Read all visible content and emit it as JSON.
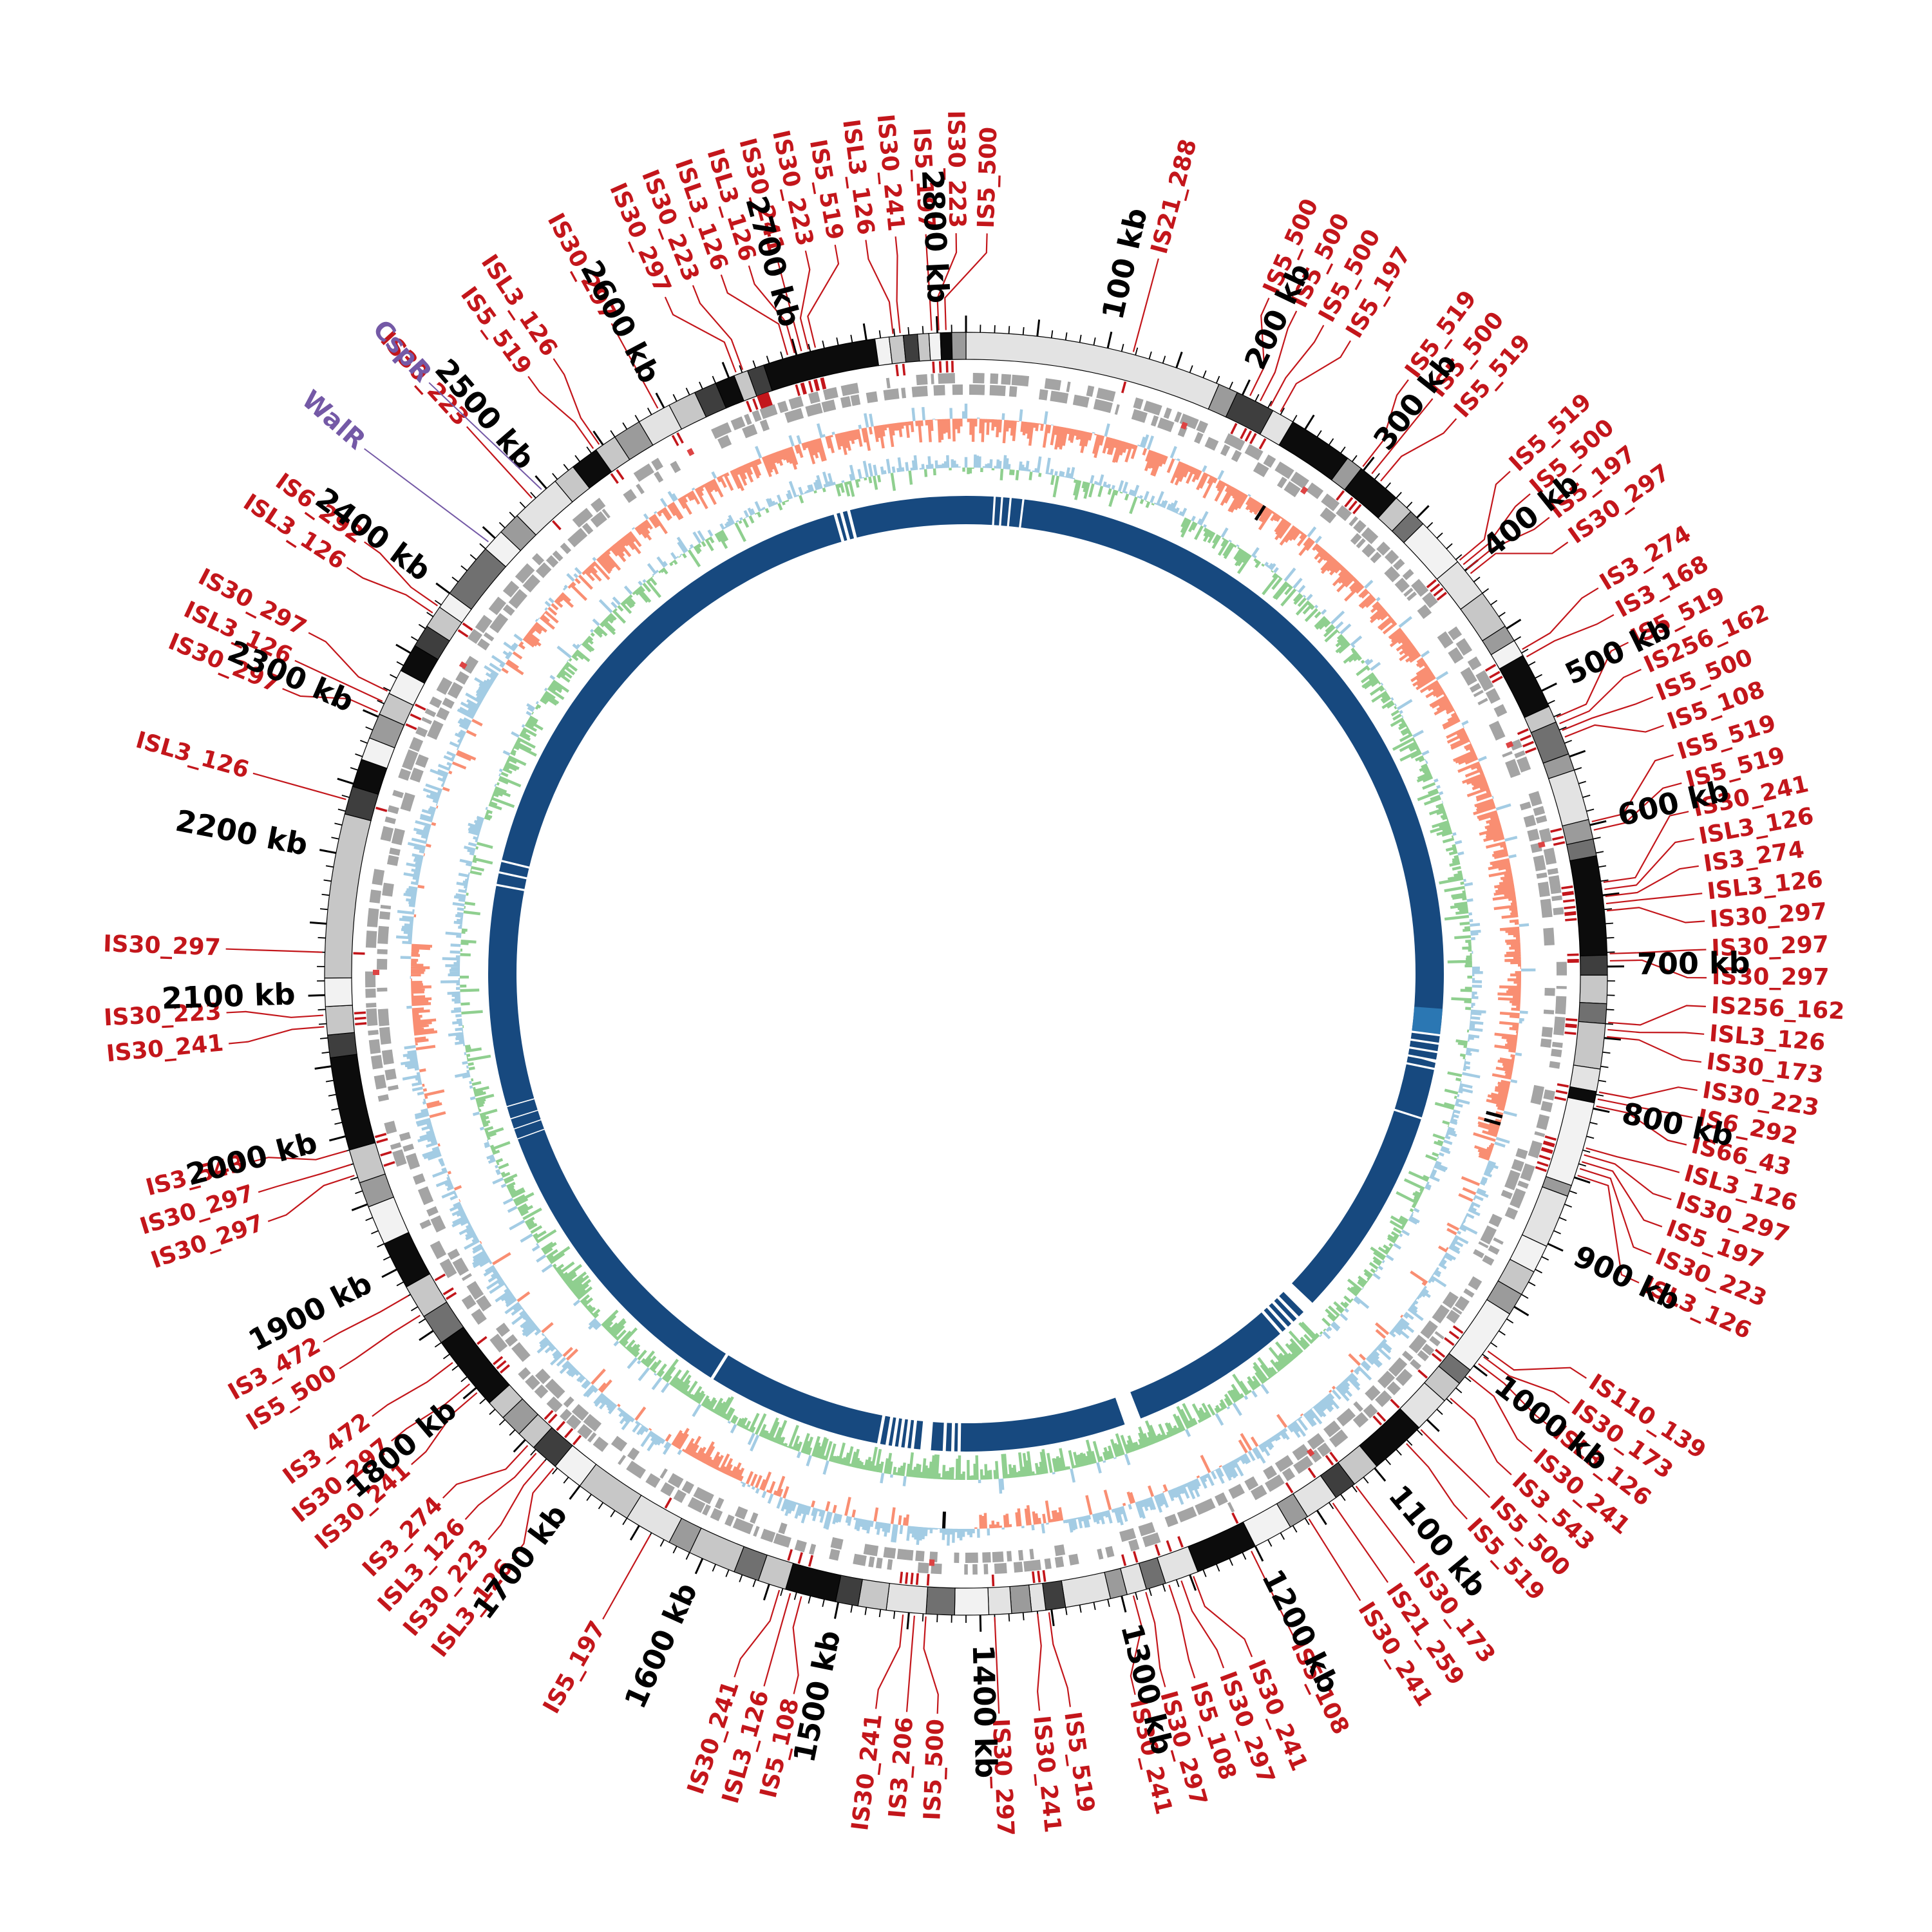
{
  "figure": {
    "background": "#ffffff",
    "colors": {
      "is_label_red": "#C3161B",
      "gene_label_purple": "#7459A6",
      "scale_black": "#000000",
      "skew_orange": "#F98E72",
      "skew_blue": "#A3CCE4",
      "inner_green": "#8FCF8F",
      "coverage_navy": "#17497F",
      "coverage_highlight_blue": "#2B77B3",
      "cds_gray": "#A4A4A4",
      "gc_shades": {
        "W": "#F2F2F2",
        "L": "#E3E3E3",
        "C": "#C7C7C7",
        "M": "#9B9B9B",
        "D": "#707070",
        "D2": "#3E3E3E",
        "K": "#0C0C0C"
      }
    }
  },
  "chart_data": {
    "type": "circular-genome-map",
    "genome_length_kb": 2820,
    "scale": {
      "unit": "kb",
      "tick_minor_kb": 10,
      "tick_major_kb": 50,
      "label_interval_kb": 100,
      "labels": [
        "100 kb",
        "200 kb",
        "300 kb",
        "400 kb",
        "500 kb",
        "600 kb",
        "700 kb",
        "800 kb",
        "900 kb",
        "1000 kb",
        "1100 kb",
        "1200 kb",
        "1300 kb",
        "1400 kb",
        "1500 kb",
        "1600 kb",
        "1700 kb",
        "1800 kb",
        "1900 kb",
        "2000 kb",
        "2100 kb",
        "2200 kb",
        "2300 kb",
        "2400 kb",
        "2500 kb",
        "2600 kb",
        "2700 kb",
        "2800 kb"
      ]
    },
    "gene_labels": [
      {
        "name": "CspR",
        "kb": 2497
      },
      {
        "name": "WalR",
        "kb": 2445
      }
    ],
    "is_elements": [
      [
        "IS21_288",
        118
      ],
      [
        "IS5_500",
        205
      ],
      [
        "IS5_500",
        213
      ],
      [
        "IS5_500",
        221
      ],
      [
        "IS5_197",
        229
      ],
      [
        "IS5_519",
        298
      ],
      [
        "IS5_500",
        306
      ],
      [
        "IS5_519",
        314
      ],
      [
        "IS5_519",
        392
      ],
      [
        "IS5_500",
        396
      ],
      [
        "IS5_197",
        400
      ],
      [
        "IS30_297",
        404
      ],
      [
        "IS3_274",
        468
      ],
      [
        "IS3_168",
        474
      ],
      [
        "IS5_519",
        521
      ],
      [
        "IS256_162",
        526
      ],
      [
        "IS5_500",
        531
      ],
      [
        "IS5_108",
        536
      ],
      [
        "IS5_519",
        598
      ],
      [
        "IS5_519",
        604
      ],
      [
        "IS30_241",
        641
      ],
      [
        "ISL3_126",
        646
      ],
      [
        "IS3_274",
        651
      ],
      [
        "ISL3_126",
        656
      ],
      [
        "IS30_297",
        661
      ],
      [
        "IS30_297",
        691
      ],
      [
        "IS30_297",
        696
      ],
      [
        "IS256_162",
        739
      ],
      [
        "ISL3_126",
        744
      ],
      [
        "IS30_173",
        749
      ],
      [
        "IS30_223",
        788
      ],
      [
        "IS6_292",
        793
      ],
      [
        "IS66_43",
        798
      ],
      [
        "ISL3_126",
        828
      ],
      [
        "IS30_297",
        833
      ],
      [
        "IS5_197",
        838
      ],
      [
        "IS30_223",
        843
      ],
      [
        "ISL3_126",
        848
      ],
      [
        "IS110_139",
        986
      ],
      [
        "IS30_173",
        991
      ],
      [
        "ISL3_126",
        997
      ],
      [
        "IS30_241",
        1008
      ],
      [
        "IS3_543",
        1028
      ],
      [
        "IS5_500",
        1058
      ],
      [
        "IS5_519",
        1072
      ],
      [
        "IS30_173",
        1118
      ],
      [
        "IS21_259",
        1138
      ],
      [
        "IS30_241",
        1158
      ],
      [
        "IS5_108",
        1204
      ],
      [
        "IS30_241",
        1248
      ],
      [
        "IS30_297",
        1257
      ],
      [
        "IS5_108",
        1266
      ],
      [
        "IS30_297",
        1283
      ],
      [
        "IS30_241",
        1292
      ],
      [
        "IS5_519",
        1352
      ],
      [
        "IS30_241",
        1360
      ],
      [
        "IS30_297",
        1390
      ],
      [
        "IS5_500",
        1438
      ],
      [
        "IS3_206",
        1446
      ],
      [
        "IS30_241",
        1454
      ],
      [
        "IS5_108",
        1526
      ],
      [
        "ISL3_126",
        1534
      ],
      [
        "IS30_241",
        1542
      ],
      [
        "IS5_197",
        1640
      ],
      [
        "ISL3_126",
        1722
      ],
      [
        "IS30_223",
        1730
      ],
      [
        "ISL3_126",
        1738
      ],
      [
        "IS3_274",
        1746
      ],
      [
        "IS30_241",
        1797
      ],
      [
        "IS30_297",
        1805
      ],
      [
        "IS3_472",
        1824
      ],
      [
        "IS5_500",
        1864
      ],
      [
        "IS3_472",
        1880
      ],
      [
        "IS30_297",
        1972
      ],
      [
        "IS30_297",
        1980
      ],
      [
        "IS3_543",
        1990
      ],
      [
        "IS30_241",
        2078
      ],
      [
        "IS30_223",
        2086
      ],
      [
        "IS30_297",
        2130
      ],
      [
        "ISL3_126",
        2238
      ],
      [
        "IS30_297",
        2303
      ],
      [
        "ISL3_126",
        2311
      ],
      [
        "IS30_297",
        2319
      ],
      [
        "ISL3_126",
        2382
      ],
      [
        "IS6_292",
        2388
      ],
      [
        "IS30_223",
        2488
      ],
      [
        "IS5_519",
        2543
      ],
      [
        "ISL3_126",
        2548
      ],
      [
        "IS30_297",
        2596
      ],
      [
        "IS30_297",
        2656
      ],
      [
        "IS30_223",
        2661
      ],
      [
        "ISL3_126",
        2694
      ],
      [
        "ISL3_126",
        2699
      ],
      [
        "IS30_241",
        2704
      ],
      [
        "IS30_223",
        2709
      ],
      [
        "IS5_519",
        2714
      ],
      [
        "ISL3_126",
        2769
      ],
      [
        "IS30_241",
        2774
      ],
      [
        "IS5_197",
        2796
      ],
      [
        "IS30_223",
        2801
      ],
      [
        "IS5_500",
        2806
      ]
    ],
    "wide_red_marks": [
      [
        2664,
        9
      ]
    ],
    "gene_track_red_marks": [
      168,
      272,
      524,
      604,
      1128,
      1434,
      2114,
      2360,
      2600
    ],
    "gc_segments": [
      [
        0,
        182,
        "L"
      ],
      [
        182,
        196,
        "M"
      ],
      [
        196,
        224,
        "D2"
      ],
      [
        224,
        240,
        "L"
      ],
      [
        240,
        286,
        "K"
      ],
      [
        286,
        298,
        "M"
      ],
      [
        298,
        330,
        "K"
      ],
      [
        330,
        344,
        "C"
      ],
      [
        344,
        356,
        "D"
      ],
      [
        356,
        392,
        "W"
      ],
      [
        392,
        420,
        "L"
      ],
      [
        420,
        448,
        "C"
      ],
      [
        448,
        460,
        "M"
      ],
      [
        460,
        472,
        "W"
      ],
      [
        472,
        512,
        "K"
      ],
      [
        512,
        524,
        "C"
      ],
      [
        524,
        548,
        "D"
      ],
      [
        548,
        560,
        "M"
      ],
      [
        560,
        596,
        "L"
      ],
      [
        596,
        610,
        "M"
      ],
      [
        610,
        622,
        "D"
      ],
      [
        622,
        692,
        "K"
      ],
      [
        692,
        706,
        "D2"
      ],
      [
        706,
        726,
        "C"
      ],
      [
        726,
        740,
        "D"
      ],
      [
        740,
        772,
        "C"
      ],
      [
        772,
        788,
        "L"
      ],
      [
        788,
        796,
        "K"
      ],
      [
        796,
        856,
        "W"
      ],
      [
        856,
        864,
        "M"
      ],
      [
        864,
        902,
        "L"
      ],
      [
        902,
        922,
        "W"
      ],
      [
        922,
        940,
        "C"
      ],
      [
        940,
        956,
        "M"
      ],
      [
        956,
        1004,
        "W"
      ],
      [
        1004,
        1016,
        "D"
      ],
      [
        1016,
        1032,
        "C"
      ],
      [
        1032,
        1058,
        "L"
      ],
      [
        1058,
        1098,
        "K"
      ],
      [
        1098,
        1118,
        "C"
      ],
      [
        1118,
        1134,
        "D2"
      ],
      [
        1134,
        1158,
        "L"
      ],
      [
        1158,
        1172,
        "M"
      ],
      [
        1172,
        1200,
        "W"
      ],
      [
        1200,
        1244,
        "K"
      ],
      [
        1244,
        1268,
        "L"
      ],
      [
        1268,
        1282,
        "D"
      ],
      [
        1282,
        1296,
        "L"
      ],
      [
        1296,
        1308,
        "M"
      ],
      [
        1308,
        1340,
        "L"
      ],
      [
        1340,
        1354,
        "D2"
      ],
      [
        1354,
        1364,
        "L"
      ],
      [
        1364,
        1378,
        "M"
      ],
      [
        1378,
        1394,
        "L"
      ],
      [
        1394,
        1418,
        "W"
      ],
      [
        1418,
        1438,
        "D"
      ],
      [
        1438,
        1466,
        "L"
      ],
      [
        1466,
        1486,
        "C"
      ],
      [
        1486,
        1502,
        "D2"
      ],
      [
        1502,
        1538,
        "K"
      ],
      [
        1538,
        1558,
        "C"
      ],
      [
        1558,
        1576,
        "D"
      ],
      [
        1576,
        1610,
        "C"
      ],
      [
        1610,
        1626,
        "M"
      ],
      [
        1626,
        1660,
        "L"
      ],
      [
        1660,
        1700,
        "C"
      ],
      [
        1700,
        1722,
        "W"
      ],
      [
        1722,
        1742,
        "D2"
      ],
      [
        1742,
        1756,
        "C"
      ],
      [
        1756,
        1772,
        "M"
      ],
      [
        1772,
        1786,
        "C"
      ],
      [
        1786,
        1840,
        "K"
      ],
      [
        1840,
        1862,
        "D"
      ],
      [
        1862,
        1886,
        "C"
      ],
      [
        1886,
        1920,
        "K"
      ],
      [
        1920,
        1948,
        "W"
      ],
      [
        1948,
        1966,
        "M"
      ],
      [
        1966,
        1990,
        "C"
      ],
      [
        1990,
        2056,
        "K"
      ],
      [
        2056,
        2072,
        "D2"
      ],
      [
        2072,
        2092,
        "C"
      ],
      [
        2092,
        2112,
        "W"
      ],
      [
        2112,
        2228,
        "C"
      ],
      [
        2228,
        2248,
        "D2"
      ],
      [
        2248,
        2268,
        "K"
      ],
      [
        2268,
        2284,
        "W"
      ],
      [
        2284,
        2302,
        "M"
      ],
      [
        2302,
        2318,
        "C"
      ],
      [
        2318,
        2336,
        "W"
      ],
      [
        2336,
        2356,
        "K"
      ],
      [
        2356,
        2372,
        "D2"
      ],
      [
        2372,
        2388,
        "C"
      ],
      [
        2388,
        2400,
        "W"
      ],
      [
        2400,
        2440,
        "D"
      ],
      [
        2440,
        2456,
        "W"
      ],
      [
        2456,
        2472,
        "M"
      ],
      [
        2472,
        2508,
        "L"
      ],
      [
        2508,
        2524,
        "C"
      ],
      [
        2524,
        2544,
        "K"
      ],
      [
        2544,
        2560,
        "C"
      ],
      [
        2560,
        2580,
        "M"
      ],
      [
        2580,
        2604,
        "L"
      ],
      [
        2604,
        2624,
        "C"
      ],
      [
        2624,
        2640,
        "D2"
      ],
      [
        2640,
        2654,
        "K"
      ],
      [
        2654,
        2664,
        "C"
      ],
      [
        2664,
        2676,
        "D2"
      ],
      [
        2676,
        2756,
        "K"
      ],
      [
        2756,
        2766,
        "W"
      ],
      [
        2766,
        2776,
        "C"
      ],
      [
        2776,
        2786,
        "D2"
      ],
      [
        2786,
        2794,
        "C"
      ],
      [
        2794,
        2802,
        "W"
      ],
      [
        2802,
        2810,
        "K"
      ],
      [
        2810,
        2820,
        "M"
      ]
    ],
    "skew_bias": [
      [
        0,
        300,
        -0.55
      ],
      [
        300,
        700,
        -0.5
      ],
      [
        700,
        860,
        -0.35
      ],
      [
        860,
        1000,
        0.3
      ],
      [
        1000,
        1330,
        0.5
      ],
      [
        1330,
        1400,
        -0.35
      ],
      [
        1400,
        1560,
        0.55
      ],
      [
        1560,
        1660,
        -0.45
      ],
      [
        1660,
        2060,
        0.5
      ],
      [
        2060,
        2140,
        -0.5
      ],
      [
        2140,
        2400,
        0.5
      ],
      [
        2400,
        2480,
        -0.35
      ],
      [
        2480,
        2820,
        -0.55
      ]
    ],
    "inner_bias": [
      [
        0,
        200,
        0.2
      ],
      [
        200,
        420,
        -0.25
      ],
      [
        420,
        700,
        -0.3
      ],
      [
        700,
        900,
        0.25
      ],
      [
        900,
        1080,
        -0.2
      ],
      [
        1080,
        1320,
        -0.45
      ],
      [
        1320,
        1620,
        -0.5
      ],
      [
        1620,
        1860,
        -0.45
      ],
      [
        1860,
        2050,
        -0.25
      ],
      [
        2050,
        2260,
        0.3
      ],
      [
        2260,
        2430,
        -0.3
      ],
      [
        2430,
        2600,
        -0.2
      ],
      [
        2600,
        2820,
        0.15
      ]
    ],
    "skew_black_marks": [
      255,
      822,
      828,
      1428
    ],
    "coverage_gaps": [
      [
        26,
        2
      ],
      [
        33,
        2
      ],
      [
        41,
        2
      ],
      [
        53,
        2
      ],
      [
        762,
        2
      ],
      [
        770,
        2
      ],
      [
        778,
        2
      ],
      [
        786,
        2
      ],
      [
        794,
        2
      ],
      [
        842,
        2
      ],
      [
        1046,
        12
      ],
      [
        1064,
        3
      ],
      [
        1071,
        3
      ],
      [
        1078,
        3
      ],
      [
        1085,
        3
      ],
      [
        1242,
        16
      ],
      [
        1415,
        3
      ],
      [
        1421,
        3
      ],
      [
        1429,
        3
      ],
      [
        1443,
        10
      ],
      [
        1459,
        3
      ],
      [
        1465,
        3
      ],
      [
        1471,
        3
      ],
      [
        1477,
        3
      ],
      [
        1483,
        3
      ],
      [
        1491,
        3
      ],
      [
        1660,
        3
      ],
      [
        1956,
        1
      ],
      [
        1966,
        1
      ],
      [
        1976,
        1
      ],
      [
        1988,
        1
      ],
      [
        2198,
        2
      ],
      [
        2210,
        2
      ],
      [
        2221,
        2
      ],
      [
        2694,
        3
      ],
      [
        2700,
        3
      ],
      [
        2707,
        3
      ]
    ],
    "coverage_highlights": [
      [
        738,
        762
      ]
    ],
    "noise_seed": 20240613
  }
}
